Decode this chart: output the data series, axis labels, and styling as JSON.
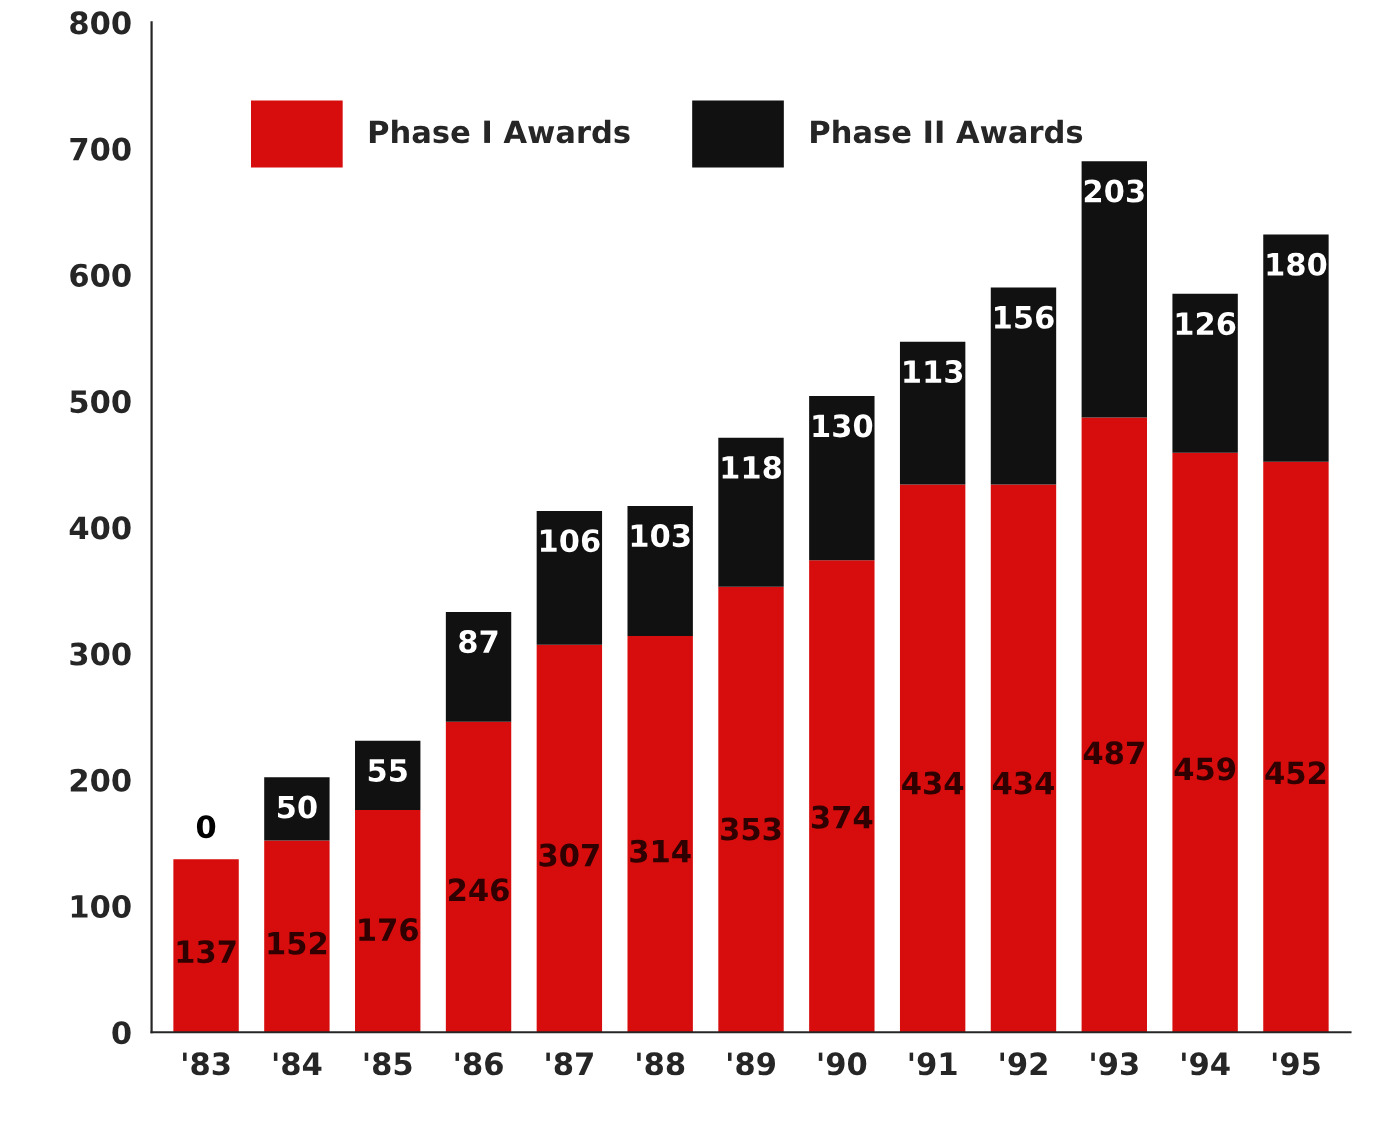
{
  "chart_data": {
    "type": "bar",
    "stacked": true,
    "categories": [
      "'83",
      "'84",
      "'85",
      "'86",
      "'87",
      "'88",
      "'89",
      "'90",
      "'91",
      "'92",
      "'93",
      "'94",
      "'95"
    ],
    "series": [
      {
        "name": "Phase I Awards",
        "color": "#d70c0c",
        "values": [
          137,
          152,
          176,
          246,
          307,
          314,
          353,
          374,
          434,
          434,
          487,
          459,
          452
        ]
      },
      {
        "name": "Phase II Awards",
        "color": "#111111",
        "values": [
          0,
          50,
          55,
          87,
          106,
          103,
          118,
          130,
          113,
          156,
          203,
          126,
          180
        ]
      }
    ],
    "ylim": [
      0,
      800
    ],
    "yticks": [
      0,
      100,
      200,
      300,
      400,
      500,
      600,
      700,
      800
    ],
    "grid": false,
    "legend": "top left",
    "data_labels": true
  }
}
